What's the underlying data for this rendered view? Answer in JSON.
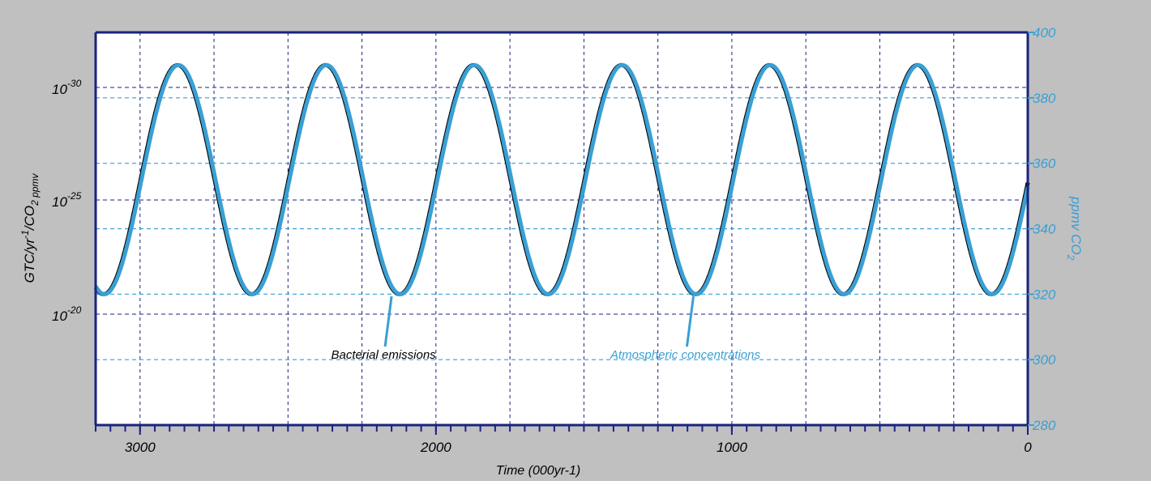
{
  "colors": {
    "frame_background": "#c0c0c0",
    "plot_background": "#ffffff",
    "axis": "#1a237e",
    "left_grid": "#1a237e",
    "right_grid": "#3a9fd4",
    "emissions_series": "#000000",
    "concentration_series": "#3a9fd4"
  },
  "chart_data": {
    "type": "line",
    "xlabel": "Time (000yr-1)",
    "x_reversed": true,
    "xlim": [
      3150,
      0
    ],
    "x_ticks": [
      3000,
      2000,
      1000,
      0
    ],
    "x_tick_labels": [
      "3000",
      "2000",
      "1000",
      "0"
    ],
    "left_axis": {
      "label_parts": [
        "GTC/yr",
        "-1",
        "/CO",
        "2 ppmv"
      ],
      "scale": "log",
      "ticks": [
        {
          "base": "10",
          "exp": "-30"
        },
        {
          "base": "10",
          "exp": "-25"
        },
        {
          "base": "10",
          "exp": "-20"
        }
      ]
    },
    "right_axis": {
      "label_parts": [
        "ppmv CO",
        "2"
      ],
      "ylim": [
        280,
        400
      ],
      "ticks": [
        280,
        300,
        320,
        340,
        360,
        380,
        400
      ]
    },
    "series": [
      {
        "name": "Bacterial emissions",
        "axis": "right",
        "period": 500,
        "phase_x": 3150,
        "phase_y": 322,
        "min": 320,
        "max": 390
      },
      {
        "name": "Atmospheric concentrations",
        "axis": "right",
        "period": 500,
        "phase_x": 3150,
        "phase_y": 320,
        "min": 320,
        "max": 390,
        "lag": 30
      }
    ],
    "annotations": [
      {
        "text": "Bacterial emissions",
        "x": 2150,
        "color": "#000000"
      },
      {
        "text": "Atmospheric concentrations",
        "x": 1130,
        "color": "#3a9fd4"
      }
    ]
  }
}
